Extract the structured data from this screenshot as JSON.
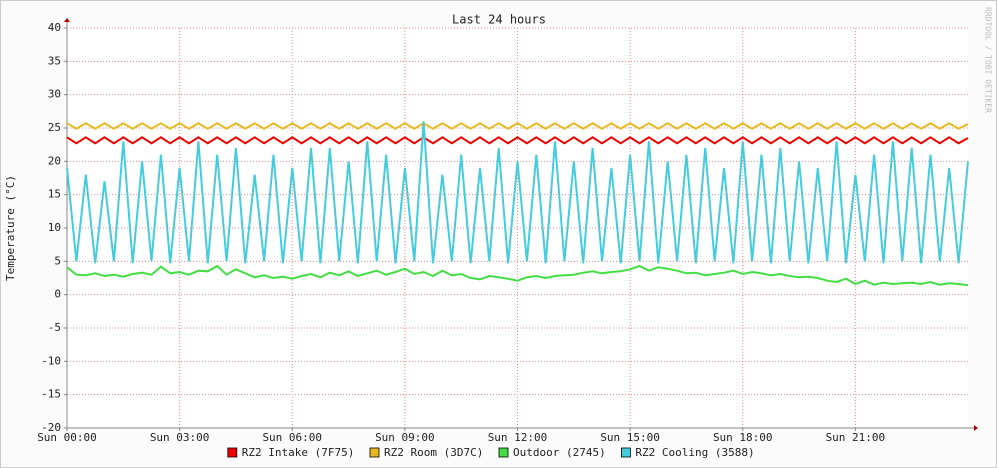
{
  "chart_data": {
    "type": "line",
    "title": "Last 24 hours",
    "y_label": "Temperature (°C)",
    "watermark": "RRDTOOL / TOBI OETIKER",
    "xlim": [
      0,
      24
    ],
    "xticks": [
      {
        "value": 0,
        "label": "Sun 00:00"
      },
      {
        "value": 3,
        "label": "Sun 03:00"
      },
      {
        "value": 6,
        "label": "Sun 06:00"
      },
      {
        "value": 9,
        "label": "Sun 09:00"
      },
      {
        "value": 12,
        "label": "Sun 12:00"
      },
      {
        "value": 15,
        "label": "Sun 15:00"
      },
      {
        "value": 18,
        "label": "Sun 18:00"
      },
      {
        "value": 21,
        "label": "Sun 21:00"
      }
    ],
    "ylim": [
      -20,
      40
    ],
    "yticks": [
      -20,
      -15,
      -10,
      -5,
      0,
      5,
      10,
      15,
      20,
      25,
      30,
      35,
      40
    ],
    "grid": true,
    "x": [
      0,
      0.25,
      0.5,
      0.75,
      1,
      1.25,
      1.5,
      1.75,
      2,
      2.25,
      2.5,
      2.75,
      3,
      3.25,
      3.5,
      3.75,
      4,
      4.25,
      4.5,
      4.75,
      5,
      5.25,
      5.5,
      5.75,
      6,
      6.25,
      6.5,
      6.75,
      7,
      7.25,
      7.5,
      7.75,
      8,
      8.25,
      8.5,
      8.75,
      9,
      9.25,
      9.5,
      9.75,
      10,
      10.25,
      10.5,
      10.75,
      11,
      11.25,
      11.5,
      11.75,
      12,
      12.25,
      12.5,
      12.75,
      13,
      13.25,
      13.5,
      13.75,
      14,
      14.25,
      14.5,
      14.75,
      15,
      15.25,
      15.5,
      15.75,
      16,
      16.25,
      16.5,
      16.75,
      17,
      17.25,
      17.5,
      17.75,
      18,
      18.25,
      18.5,
      18.75,
      19,
      19.25,
      19.5,
      19.75,
      20,
      20.25,
      20.5,
      20.75,
      21,
      21.25,
      21.5,
      21.75,
      22,
      22.25,
      22.5,
      22.75,
      23,
      23.25,
      23.5,
      23.75,
      24
    ],
    "series": [
      {
        "name": "RZ2 Intake (7F75)",
        "color": "#ee0000",
        "values": [
          23.6,
          22.7,
          23.6,
          22.7,
          23.6,
          22.7,
          23.6,
          22.7,
          23.6,
          22.7,
          23.6,
          22.7,
          23.6,
          22.7,
          23.6,
          22.7,
          23.6,
          22.7,
          23.6,
          22.7,
          23.6,
          22.7,
          23.6,
          22.7,
          23.6,
          22.7,
          23.6,
          22.7,
          23.6,
          22.7,
          23.6,
          22.7,
          23.6,
          22.7,
          23.6,
          22.7,
          23.6,
          22.7,
          23.6,
          22.7,
          23.6,
          22.7,
          23.6,
          22.7,
          23.6,
          22.7,
          23.6,
          22.7,
          23.6,
          22.7,
          23.6,
          22.7,
          23.6,
          22.7,
          23.6,
          22.7,
          23.6,
          22.7,
          23.6,
          22.7,
          23.6,
          22.7,
          23.6,
          22.7,
          23.6,
          22.7,
          23.6,
          22.7,
          23.6,
          22.7,
          23.6,
          22.7,
          23.6,
          22.7,
          23.6,
          22.7,
          23.6,
          22.7,
          23.6,
          22.7,
          23.6,
          22.7,
          23.6,
          22.7,
          23.6,
          22.7,
          23.6,
          22.7,
          23.6,
          22.7,
          23.6,
          22.7,
          23.6,
          22.7,
          23.6,
          22.7,
          23.5
        ]
      },
      {
        "name": "RZ2 Room (3D7C)",
        "color": "#e8b820",
        "values": [
          25.7,
          24.9,
          25.7,
          24.9,
          25.7,
          24.9,
          25.7,
          24.9,
          25.7,
          24.9,
          25.7,
          24.9,
          25.7,
          24.9,
          25.7,
          24.9,
          25.7,
          24.9,
          25.7,
          24.9,
          25.7,
          24.9,
          25.7,
          24.9,
          25.7,
          24.9,
          25.7,
          24.9,
          25.7,
          24.9,
          25.7,
          24.9,
          25.7,
          24.9,
          25.7,
          24.9,
          25.7,
          24.9,
          25.7,
          24.9,
          25.7,
          24.9,
          25.7,
          24.9,
          25.7,
          24.9,
          25.7,
          24.9,
          25.7,
          24.9,
          25.7,
          24.9,
          25.7,
          24.9,
          25.7,
          24.9,
          25.7,
          24.9,
          25.7,
          24.9,
          25.7,
          24.9,
          25.7,
          24.9,
          25.7,
          24.9,
          25.7,
          24.9,
          25.7,
          24.9,
          25.7,
          24.9,
          25.7,
          24.9,
          25.7,
          24.9,
          25.7,
          24.9,
          25.7,
          24.9,
          25.7,
          24.9,
          25.7,
          24.9,
          25.7,
          24.9,
          25.7,
          24.9,
          25.7,
          24.9,
          25.7,
          24.9,
          25.7,
          24.9,
          25.7,
          24.9,
          25.6
        ]
      },
      {
        "name": "Outdoor (2745)",
        "color": "#44dd44",
        "values": [
          4.1,
          3.0,
          2.9,
          3.2,
          2.8,
          3.0,
          2.7,
          3.1,
          3.3,
          3.0,
          4.2,
          3.2,
          3.4,
          3.0,
          3.6,
          3.5,
          4.3,
          3.0,
          3.8,
          3.2,
          2.6,
          2.9,
          2.5,
          2.7,
          2.4,
          2.8,
          3.1,
          2.6,
          3.3,
          2.9,
          3.5,
          2.8,
          3.2,
          3.6,
          3.0,
          3.4,
          3.9,
          3.1,
          3.4,
          2.8,
          3.6,
          2.9,
          3.1,
          2.5,
          2.3,
          2.8,
          2.6,
          2.4,
          2.1,
          2.6,
          2.8,
          2.5,
          2.8,
          2.9,
          3.0,
          3.3,
          3.5,
          3.2,
          3.4,
          3.5,
          3.8,
          4.3,
          3.6,
          4.1,
          3.9,
          3.6,
          3.2,
          3.3,
          2.9,
          3.1,
          3.3,
          3.6,
          3.1,
          3.4,
          3.2,
          2.9,
          3.1,
          2.8,
          2.6,
          2.7,
          2.5,
          2.1,
          1.9,
          2.4,
          1.6,
          2.1,
          1.5,
          1.8,
          1.6,
          1.7,
          1.8,
          1.6,
          1.9,
          1.5,
          1.7,
          1.6,
          1.4
        ]
      },
      {
        "name": "RZ2 Cooling (3588)",
        "color": "#44ccdd",
        "values": [
          19,
          5,
          18,
          4.7,
          17,
          5,
          23,
          4.7,
          20,
          5,
          21,
          4.7,
          19,
          5,
          23,
          4.7,
          21,
          5,
          22,
          4.7,
          18,
          5,
          21,
          4.7,
          19,
          5,
          22,
          4.7,
          22,
          5,
          20,
          4.7,
          23,
          5,
          21,
          4.7,
          19,
          5,
          26,
          4.7,
          18,
          5,
          21,
          4.7,
          19,
          5,
          22,
          4.7,
          20,
          5,
          21,
          4.7,
          23,
          5,
          20,
          4.7,
          22,
          5,
          19,
          4.7,
          21,
          5,
          23,
          4.7,
          20,
          5,
          21,
          4.7,
          22,
          5,
          19,
          4.7,
          23,
          5,
          21,
          4.7,
          22,
          5,
          20,
          4.7,
          19,
          5,
          23,
          4.7,
          18,
          5,
          21,
          4.7,
          23,
          5,
          22,
          4.7,
          21,
          5,
          19,
          4.7,
          20
        ]
      }
    ]
  }
}
